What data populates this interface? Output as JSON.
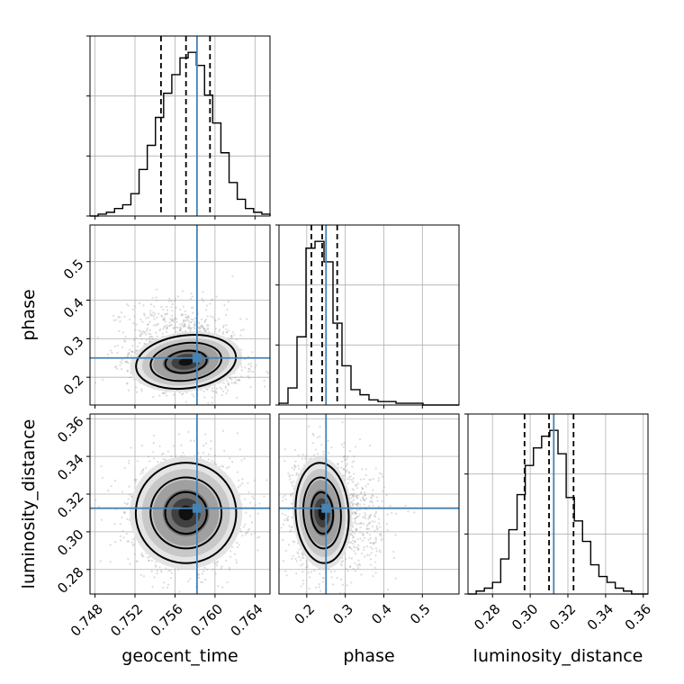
{
  "chart_data": {
    "type": "corner",
    "parameters": [
      "geocent_time",
      "phase",
      "luminosity_distance"
    ],
    "injected": {
      "geocent_time": 0.7582,
      "phase": 0.25,
      "luminosity_distance": 0.3125
    },
    "quantiles": {
      "geocent_time": [
        0.7546,
        0.7571,
        0.7595
      ],
      "phase": [
        0.212,
        0.24,
        0.279
      ],
      "luminosity_distance": [
        0.297,
        0.31,
        0.323
      ]
    },
    "ranges": {
      "geocent_time": [
        0.7475,
        0.7655
      ],
      "phase": [
        0.128,
        0.595
      ],
      "luminosity_distance": [
        0.267,
        0.3625
      ]
    },
    "ticks": {
      "geocent_time": {
        "values": [
          0.748,
          0.752,
          0.756,
          0.76,
          0.764
        ],
        "labels": [
          "0.748",
          "0.752",
          "0.756",
          "0.760",
          "0.764"
        ]
      },
      "phase": {
        "values": [
          0.2,
          0.3,
          0.4,
          0.5
        ],
        "labels": [
          "0.2",
          "0.3",
          "0.4",
          "0.5"
        ]
      },
      "luminosity_distance": {
        "values": [
          0.28,
          0.3,
          0.32,
          0.34,
          0.36
        ],
        "labels": [
          "0.28",
          "0.30",
          "0.32",
          "0.34",
          "0.36"
        ]
      }
    },
    "histograms": {
      "geocent_time": {
        "edges": [
          0.7475,
          0.7655
        ],
        "counts": [
          0,
          1,
          2,
          4,
          6,
          12,
          25,
          38,
          53,
          66,
          76,
          85,
          88,
          81,
          65,
          50,
          34,
          18,
          9,
          4,
          2,
          1
        ]
      },
      "phase": {
        "edges": [
          0.128,
          0.595
        ],
        "counts": [
          1,
          10,
          40,
          92,
          96,
          84,
          48,
          23,
          9,
          6,
          3,
          2,
          2,
          1,
          1,
          1,
          0,
          0,
          0,
          0
        ]
      },
      "luminosity_distance": {
        "edges": [
          0.267,
          0.3625
        ],
        "counts": [
          0,
          1,
          2,
          4,
          12,
          22,
          34,
          44,
          50,
          54,
          56,
          48,
          33,
          25,
          18,
          10,
          6,
          4,
          2,
          1,
          0,
          0
        ]
      }
    },
    "pairs": [
      {
        "x": "geocent_time",
        "y": "phase",
        "correlation": -0.2
      },
      {
        "x": "geocent_time",
        "y": "luminosity_distance",
        "correlation": 0.0
      },
      {
        "x": "phase",
        "y": "luminosity_distance",
        "correlation": -0.1
      }
    ],
    "grid": true,
    "colors": {
      "hist": "#000000",
      "injected": "#4682b4",
      "grid": "#b0b0b0",
      "scatter": "#9a9a9a"
    }
  }
}
